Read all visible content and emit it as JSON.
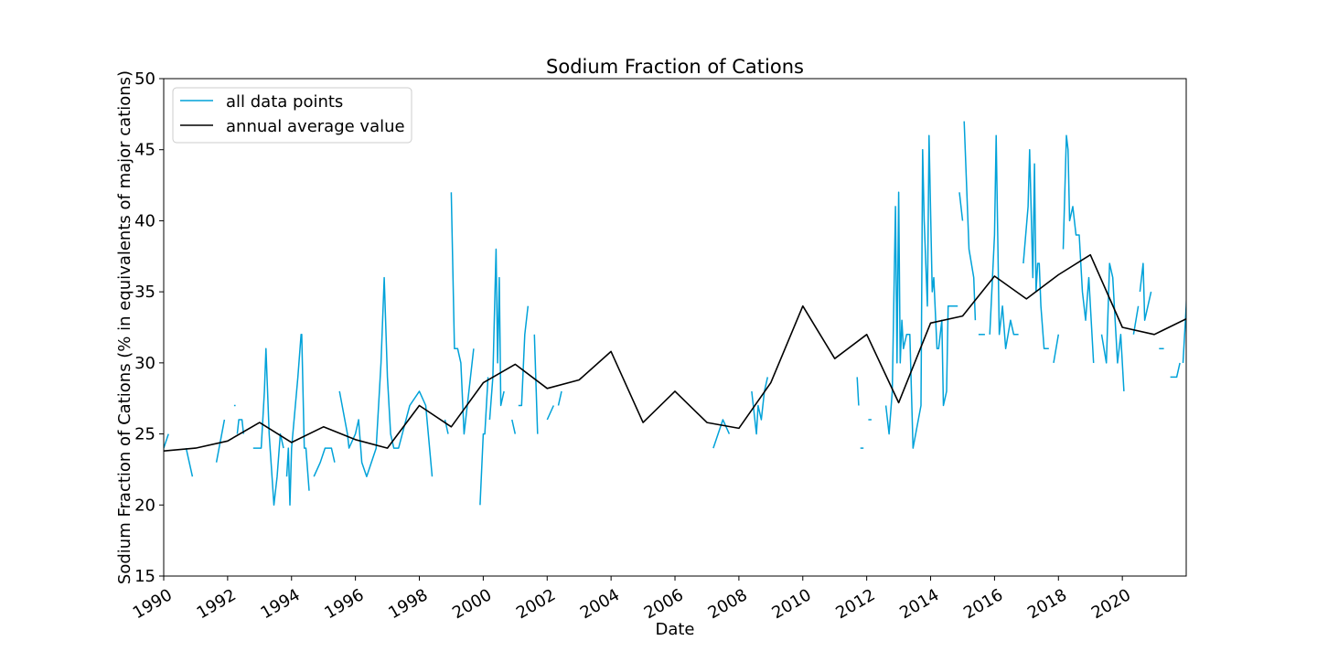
{
  "chart_data": {
    "type": "line",
    "title": "Sodium Fraction of Cations",
    "xlabel": "Date",
    "ylabel": "Sodium Fraction of Cations (% in equivalents of major cations)",
    "xlim": [
      "1990-01-01",
      "2021-12-31"
    ],
    "ylim": [
      15,
      50
    ],
    "x_ticks": [
      "1990",
      "1992",
      "1994",
      "1996",
      "1998",
      "2000",
      "2002",
      "2004",
      "2006",
      "2008",
      "2010",
      "2012",
      "2014",
      "2016",
      "2018",
      "2020"
    ],
    "y_ticks": [
      15,
      20,
      25,
      30,
      35,
      40,
      45,
      50
    ],
    "grid": false,
    "legend_position": "top-left",
    "colors": {
      "all_points": "#00a2d9",
      "annual_average": "#000000",
      "axes": "#000000",
      "background": "#ffffff"
    },
    "series": [
      {
        "name": "all data points",
        "segments": [
          [
            [
              "1990.00",
              24
            ],
            [
              "1990.15",
              25
            ]
          ],
          [
            [
              "1990.70",
              24
            ],
            [
              "1990.90",
              22
            ]
          ],
          [
            [
              "1991.65",
              23
            ],
            [
              "1991.90",
              26
            ]
          ],
          [
            [
              "1992.20",
              27
            ],
            [
              "1992.25",
              27
            ]
          ],
          [
            [
              "1992.30",
              25
            ],
            [
              "1992.35",
              26
            ],
            [
              "1992.40",
              26
            ],
            [
              "1992.45",
              26
            ],
            [
              "1992.50",
              25
            ]
          ],
          [
            [
              "1992.80",
              24
            ],
            [
              "1993.05",
              24
            ],
            [
              "1993.15",
              28
            ],
            [
              "1993.20",
              31
            ],
            [
              "1993.30",
              25
            ],
            [
              "1993.45",
              20
            ],
            [
              "1993.55",
              22
            ],
            [
              "1993.65",
              25
            ],
            [
              "1993.75",
              24
            ]
          ],
          [
            [
              "1993.85",
              22
            ],
            [
              "1993.90",
              24
            ],
            [
              "1993.95",
              20
            ],
            [
              "1994.00",
              24
            ],
            [
              "1994.20",
              29
            ],
            [
              "1994.30",
              32
            ],
            [
              "1994.32",
              32
            ],
            [
              "1994.40",
              24
            ],
            [
              "1994.45",
              24
            ],
            [
              "1994.55",
              21
            ]
          ],
          [
            [
              "1994.70",
              22
            ],
            [
              "1994.90",
              23
            ],
            [
              "1995.05",
              24
            ],
            [
              "1995.25",
              24
            ],
            [
              "1995.35",
              23
            ]
          ],
          [
            [
              "1995.50",
              28
            ],
            [
              "1995.75",
              25
            ],
            [
              "1995.80",
              24
            ],
            [
              "1996.00",
              25
            ],
            [
              "1996.10",
              26
            ],
            [
              "1996.20",
              23
            ],
            [
              "1996.35",
              22
            ],
            [
              "1996.65",
              24
            ],
            [
              "1996.80",
              30
            ],
            [
              "1996.90",
              36
            ],
            [
              "1997.00",
              29
            ],
            [
              "1997.10",
              25
            ],
            [
              "1997.20",
              24
            ],
            [
              "1997.35",
              24
            ],
            [
              "1997.70",
              27
            ],
            [
              "1998.00",
              28
            ],
            [
              "1998.20",
              27
            ],
            [
              "1998.40",
              22
            ]
          ],
          [
            [
              "1998.80",
              26
            ],
            [
              "1998.90",
              25
            ]
          ],
          [
            [
              "1999.00",
              42
            ],
            [
              "1999.10",
              31
            ],
            [
              "1999.20",
              31
            ],
            [
              "1999.30",
              30
            ],
            [
              "1999.40",
              25
            ],
            [
              "1999.55",
              28
            ],
            [
              "1999.70",
              31
            ]
          ],
          [
            [
              "1999.90",
              20
            ],
            [
              "2000.00",
              25
            ],
            [
              "2000.05",
              25
            ],
            [
              "2000.15",
              29
            ]
          ],
          [
            [
              "2000.20",
              26
            ],
            [
              "2000.30",
              29
            ],
            [
              "2000.40",
              38
            ],
            [
              "2000.45",
              30
            ],
            [
              "2000.50",
              36
            ],
            [
              "2000.55",
              27
            ],
            [
              "2000.65",
              28
            ]
          ],
          [
            [
              "2000.90",
              26
            ],
            [
              "2001.00",
              25
            ]
          ],
          [
            [
              "2001.10",
              27
            ],
            [
              "2001.20",
              27
            ],
            [
              "2001.30",
              32
            ],
            [
              "2001.40",
              34
            ]
          ],
          [
            [
              "2001.60",
              32
            ],
            [
              "2001.70",
              25
            ]
          ],
          [
            [
              "2002.00",
              26
            ],
            [
              "2002.20",
              27
            ]
          ],
          [
            [
              "2002.35",
              27
            ],
            [
              "2002.45",
              28
            ]
          ],
          [
            [
              "2007.20",
              24
            ],
            [
              "2007.50",
              26
            ],
            [
              "2007.70",
              25
            ]
          ],
          [
            [
              "2008.40",
              28
            ],
            [
              "2008.55",
              25
            ],
            [
              "2008.60",
              27
            ],
            [
              "2008.70",
              26
            ],
            [
              "2008.80",
              28
            ],
            [
              "2008.90",
              29
            ]
          ],
          [
            [
              "2011.70",
              29
            ],
            [
              "2011.75",
              27
            ]
          ],
          [
            [
              "2011.80",
              24
            ],
            [
              "2011.90",
              24
            ]
          ],
          [
            [
              "2012.05",
              26
            ],
            [
              "2012.15",
              26
            ]
          ],
          [
            [
              "2012.60",
              27
            ],
            [
              "2012.70",
              25
            ],
            [
              "2012.80",
              28
            ],
            [
              "2012.90",
              41
            ],
            [
              "2012.95",
              30
            ],
            [
              "2013.00",
              42
            ],
            [
              "2013.05",
              30
            ],
            [
              "2013.10",
              33
            ],
            [
              "2013.15",
              31
            ],
            [
              "2013.25",
              32
            ],
            [
              "2013.35",
              32
            ],
            [
              "2013.45",
              24
            ],
            [
              "2013.70",
              27
            ],
            [
              "2013.75",
              45
            ],
            [
              "2013.80",
              40
            ],
            [
              "2013.90",
              34
            ],
            [
              "2013.95",
              46
            ],
            [
              "2014.05",
              35
            ],
            [
              "2014.10",
              36
            ],
            [
              "2014.20",
              31
            ],
            [
              "2014.25",
              31
            ],
            [
              "2014.35",
              33
            ],
            [
              "2014.40",
              27
            ],
            [
              "2014.50",
              28
            ],
            [
              "2014.55",
              34
            ],
            [
              "2014.85",
              34
            ]
          ],
          [
            [
              "2014.90",
              42
            ],
            [
              "2015.00",
              40
            ]
          ],
          [
            [
              "2015.05",
              47
            ],
            [
              "2015.20",
              38
            ],
            [
              "2015.35",
              36
            ],
            [
              "2015.40",
              33
            ]
          ],
          [
            [
              "2015.50",
              32
            ],
            [
              "2015.70",
              32
            ]
          ],
          [
            [
              "2015.85",
              32
            ],
            [
              "2016.00",
              39
            ],
            [
              "2016.05",
              46
            ],
            [
              "2016.15",
              32
            ],
            [
              "2016.25",
              34
            ],
            [
              "2016.35",
              31
            ],
            [
              "2016.50",
              33
            ],
            [
              "2016.60",
              32
            ],
            [
              "2016.75",
              32
            ]
          ],
          [
            [
              "2016.90",
              37
            ],
            [
              "2017.05",
              41
            ],
            [
              "2017.10",
              45
            ],
            [
              "2017.20",
              36
            ],
            [
              "2017.25",
              44
            ],
            [
              "2017.30",
              35
            ],
            [
              "2017.35",
              37
            ],
            [
              "2017.40",
              37
            ],
            [
              "2017.45",
              34
            ],
            [
              "2017.55",
              31
            ],
            [
              "2017.70",
              31
            ]
          ],
          [
            [
              "2017.85",
              30
            ],
            [
              "2018.00",
              32
            ]
          ],
          [
            [
              "2018.15",
              38
            ],
            [
              "2018.25",
              46
            ],
            [
              "2018.30",
              45
            ],
            [
              "2018.35",
              40
            ],
            [
              "2018.45",
              41
            ],
            [
              "2018.55",
              39
            ],
            [
              "2018.65",
              39
            ],
            [
              "2018.75",
              35
            ],
            [
              "2018.85",
              33
            ],
            [
              "2018.95",
              36
            ],
            [
              "2019.10",
              30
            ]
          ],
          [
            [
              "2019.35",
              32
            ],
            [
              "2019.50",
              30
            ],
            [
              "2019.60",
              37
            ],
            [
              "2019.70",
              36
            ],
            [
              "2019.75",
              34
            ],
            [
              "2019.85",
              30
            ],
            [
              "2019.95",
              32
            ],
            [
              "2020.05",
              28
            ]
          ],
          [
            [
              "2020.35",
              32
            ],
            [
              "2020.50",
              34
            ]
          ],
          [
            [
              "2020.55",
              35
            ],
            [
              "2020.65",
              37
            ],
            [
              "2020.70",
              33
            ],
            [
              "2020.80",
              34
            ],
            [
              "2020.90",
              35
            ]
          ],
          [
            [
              "2021.15",
              31
            ],
            [
              "2021.30",
              31
            ]
          ],
          [
            [
              "2021.40",
              28
            ]
          ],
          [
            [
              "2021.50",
              29
            ],
            [
              "2021.70",
              29
            ],
            [
              "2021.80",
              30
            ]
          ],
          [
            [
              "2021.90",
              30
            ],
            [
              "2022.00",
              34
            ],
            [
              "2022.05",
              37
            ],
            [
              "2022.10",
              36
            ],
            [
              "2022.15",
              37
            ],
            [
              "2022.20",
              34
            ],
            [
              "2022.25",
              37
            ],
            [
              "2022.30",
              31
            ],
            [
              "2022.40",
              36
            ],
            [
              "2022.50",
              33
            ],
            [
              "2022.55",
              33
            ]
          ],
          [
            [
              "2022.70",
              29
            ],
            [
              "2022.80",
              30
            ]
          ],
          [
            [
              "2023.00",
              31
            ],
            [
              "2023.05",
              48
            ]
          ]
        ]
      },
      {
        "name": "annual average value",
        "points": [
          [
            "1990.00",
            23.8
          ],
          [
            "1991.00",
            24.0
          ],
          [
            "1992.00",
            24.5
          ],
          [
            "1993.00",
            25.8
          ],
          [
            "1994.00",
            24.4
          ],
          [
            "1995.00",
            25.5
          ],
          [
            "1996.00",
            24.6
          ],
          [
            "1997.00",
            24.0
          ],
          [
            "1998.00",
            27.0
          ],
          [
            "1999.00",
            25.5
          ],
          [
            "2000.00",
            28.6
          ],
          [
            "2001.00",
            29.9
          ],
          [
            "2002.00",
            28.2
          ],
          [
            "2003.00",
            28.8
          ],
          [
            "2004.00",
            30.8
          ],
          [
            "2005.00",
            25.8
          ],
          [
            "2006.00",
            28.0
          ],
          [
            "2007.00",
            25.8
          ],
          [
            "2008.00",
            25.4
          ],
          [
            "2009.00",
            28.6
          ],
          [
            "2010.00",
            34.0
          ],
          [
            "2011.00",
            30.3
          ],
          [
            "2012.00",
            32.0
          ],
          [
            "2013.00",
            27.2
          ],
          [
            "2014.00",
            32.8
          ],
          [
            "2015.00",
            33.3
          ],
          [
            "2016.00",
            36.1
          ],
          [
            "2017.00",
            34.5
          ],
          [
            "2018.00",
            36.2
          ],
          [
            "2019.00",
            37.6
          ],
          [
            "2020.00",
            32.5
          ],
          [
            "2021.00",
            32.0
          ],
          [
            "2022.00",
            33.1
          ]
        ]
      }
    ]
  }
}
